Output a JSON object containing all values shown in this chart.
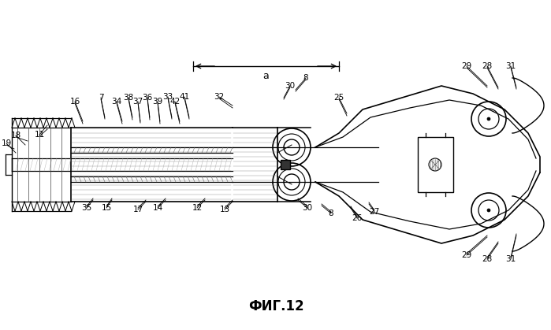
{
  "title": "ФИГ.12",
  "bg_color": "#ffffff",
  "line_color": "#000000",
  "annotation_fontsize": 7.5,
  "title_fontsize": 12,
  "figsize": [
    6.99,
    4.19
  ],
  "dpi": 100
}
